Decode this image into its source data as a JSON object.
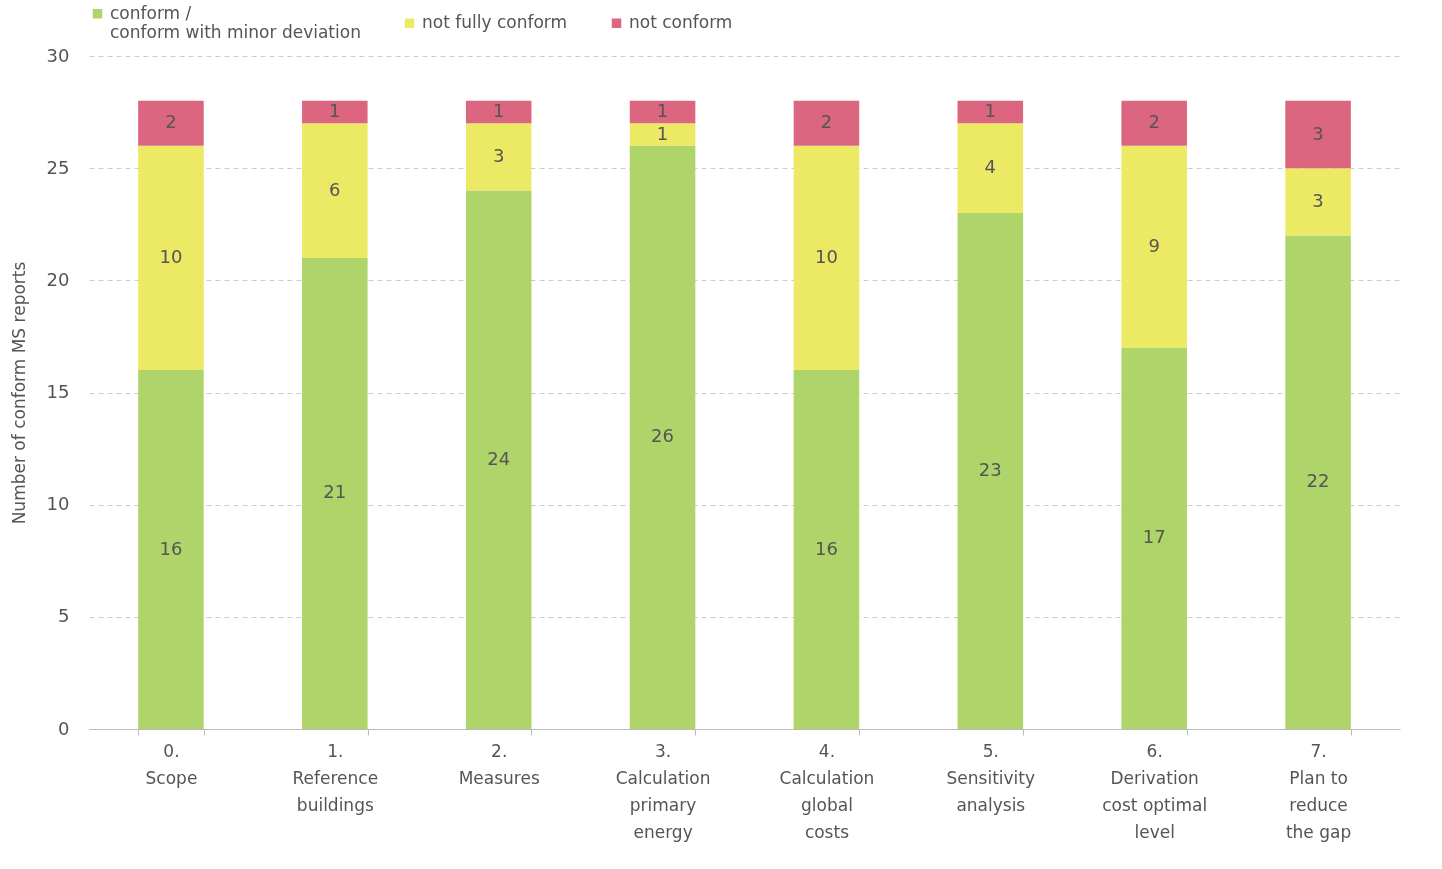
{
  "chart_data": {
    "type": "bar",
    "stacked": true,
    "ylabel": "Number of conform MS reports",
    "categories": [
      "0.\nScope",
      "1.\nReference\nbuildings",
      "2.\nMeasures",
      "3.\nCalculation\nprimary\nenergy",
      "4.\nCalculation\nglobal\ncosts",
      "5.\nSensitivity\nanalysis",
      "6.\nDerivation\ncost optimal\nlevel",
      "7.\nPlan to\nreduce\nthe gap"
    ],
    "series": [
      {
        "name": "conform /\nconform with minor deviation",
        "color": "#afd46a",
        "values": [
          16,
          21,
          24,
          26,
          16,
          23,
          17,
          22
        ]
      },
      {
        "name": "not fully conform",
        "color": "#ece964",
        "values": [
          10,
          6,
          3,
          1,
          10,
          4,
          9,
          3
        ]
      },
      {
        "name": "not conform",
        "color": "#dc6680",
        "values": [
          2,
          1,
          1,
          1,
          2,
          1,
          2,
          3
        ]
      }
    ],
    "ylim": [
      0,
      30
    ],
    "yticks": [
      0,
      5,
      10,
      15,
      20,
      25,
      30
    ],
    "grid": "y",
    "legend": "top",
    "data_labels": true
  }
}
